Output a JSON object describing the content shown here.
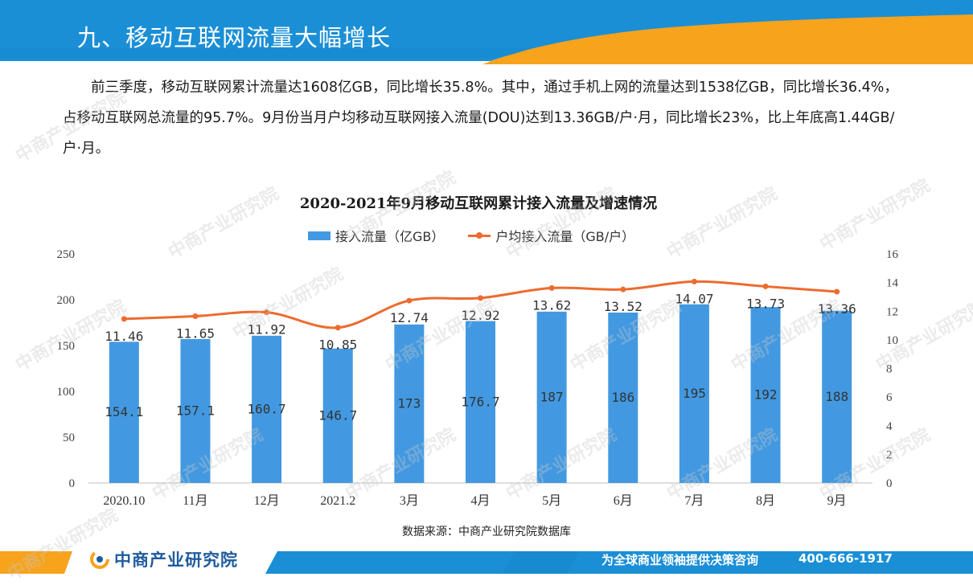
{
  "header": {
    "title": "九、移动互联网流量大幅增长",
    "colors": {
      "blue": "#1a8fd6",
      "orange": "#f7a31c"
    }
  },
  "paragraph": "前三季度，移动互联网累计流量达1608亿GB，同比增长35.8%。其中，通过手机上网的流量达到1538亿GB，同比增长36.4%， 占移动互联网总流量的95.7%。9月份当月户均移动互联网接入流量(DOU)达到13.36GB/户·月，同比增长23%，比上年底高1.44GB/户·月。",
  "chart_data": {
    "type": "bar",
    "title": "2020-2021年9月移动互联网累计接入流量及增速情况",
    "categories": [
      "2020.10",
      "11月",
      "12月",
      "2021.2",
      "3月",
      "4月",
      "5月",
      "6月",
      "7月",
      "8月",
      "9月"
    ],
    "series": [
      {
        "name": "接入流量（亿GB）",
        "type": "bar",
        "axis": "left",
        "color": "#4299e1",
        "values": [
          154.1,
          157.1,
          160.7,
          146.7,
          173,
          176.7,
          187,
          186,
          195,
          192,
          188
        ],
        "labels": [
          "154.1",
          "157.1",
          "160.7",
          "146.7",
          "173",
          "176.7",
          "187",
          "186",
          "195",
          "192",
          "188"
        ]
      },
      {
        "name": "户均接入流量（GB/户）",
        "type": "line",
        "axis": "right",
        "color": "#ed6b2f",
        "values": [
          11.46,
          11.65,
          11.92,
          10.85,
          12.74,
          12.92,
          13.62,
          13.52,
          14.07,
          13.73,
          13.36
        ],
        "labels": [
          "11.46",
          "11.65",
          "11.92",
          "10.85",
          "12.74",
          "12.92",
          "13.62",
          "13.52",
          "14.07",
          "13.73",
          "13.36"
        ]
      }
    ],
    "y_left": {
      "min": 0,
      "max": 250,
      "ticks": [
        "0",
        "50",
        "100",
        "150",
        "200",
        "250"
      ]
    },
    "y_right": {
      "min": 0,
      "max": 16,
      "ticks": [
        "0",
        "2",
        "4",
        "6",
        "8",
        "10",
        "12",
        "14",
        "16"
      ]
    },
    "grid": false,
    "legend": "top-center"
  },
  "source": "数据来源：中商产业研究院数据库",
  "footer": {
    "logo_text": "中商产业研究院",
    "slogan": "为全球商业领袖提供决策咨询",
    "phone": "400-666-1917"
  },
  "watermark": "中商产业研究院"
}
